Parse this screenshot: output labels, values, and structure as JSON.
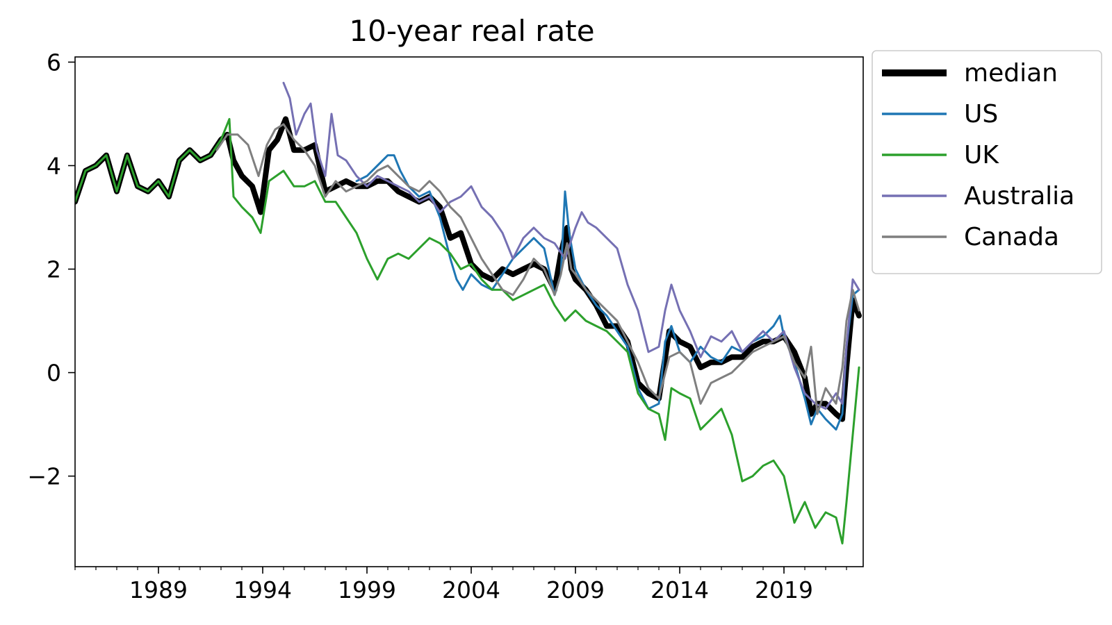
{
  "chart_data": {
    "type": "line",
    "title": "10-year real rate",
    "xlabel": "",
    "ylabel": "",
    "xlim": [
      1985.0,
      2022.8
    ],
    "ylim": [
      -3.75,
      6.1
    ],
    "x_ticks": [
      1989,
      1994,
      1999,
      2004,
      2009,
      2014,
      2019
    ],
    "x_tick_labels": [
      "1989",
      "1994",
      "1999",
      "2004",
      "2009",
      "2014",
      "2019"
    ],
    "y_ticks": [
      -2,
      0,
      2,
      4,
      6
    ],
    "y_tick_labels": [
      "−2",
      "0",
      "2",
      "4",
      "6"
    ],
    "grid": false,
    "legend_position": "outside right, top",
    "series": [
      {
        "name": "median",
        "color": "#000000",
        "x": [
          1985.0,
          1985.5,
          1986.0,
          1986.5,
          1987.0,
          1987.5,
          1988.0,
          1988.5,
          1989.0,
          1989.5,
          1990.0,
          1990.5,
          1991.0,
          1991.5,
          1992.0,
          1992.3,
          1992.6,
          1993.0,
          1993.5,
          1993.9,
          1994.3,
          1994.7,
          1995.1,
          1995.5,
          1996.0,
          1996.5,
          1997.0,
          1997.5,
          1998.0,
          1998.5,
          1999.0,
          1999.5,
          2000.0,
          2000.5,
          2001.0,
          2001.5,
          2002.0,
          2002.5,
          2003.0,
          2003.5,
          2004.0,
          2004.5,
          2005.0,
          2005.5,
          2006.0,
          2006.5,
          2007.0,
          2007.5,
          2008.0,
          2008.3,
          2008.6,
          2008.8,
          2009.0,
          2009.5,
          2010.0,
          2010.5,
          2011.0,
          2011.5,
          2012.0,
          2012.5,
          2013.0,
          2013.5,
          2014.0,
          2014.5,
          2015.0,
          2015.5,
          2016.0,
          2016.5,
          2017.0,
          2017.5,
          2018.0,
          2018.5,
          2019.0,
          2019.5,
          2020.0,
          2020.3,
          2020.6,
          2021.0,
          2021.5,
          2021.8,
          2022.0,
          2022.3,
          2022.6
        ],
        "values": [
          3.3,
          3.9,
          4.0,
          4.2,
          3.5,
          4.2,
          3.6,
          3.5,
          3.7,
          3.4,
          4.1,
          4.3,
          4.1,
          4.2,
          4.5,
          4.6,
          4.1,
          3.8,
          3.6,
          3.1,
          4.3,
          4.5,
          4.9,
          4.3,
          4.3,
          4.4,
          3.5,
          3.6,
          3.7,
          3.6,
          3.6,
          3.7,
          3.7,
          3.5,
          3.4,
          3.3,
          3.4,
          3.2,
          2.6,
          2.7,
          2.1,
          1.9,
          1.8,
          2.0,
          1.9,
          2.0,
          2.1,
          2.0,
          1.6,
          2.3,
          2.8,
          2.0,
          1.8,
          1.6,
          1.3,
          0.9,
          0.9,
          0.6,
          -0.2,
          -0.4,
          -0.5,
          0.8,
          0.6,
          0.5,
          0.1,
          0.2,
          0.2,
          0.3,
          0.3,
          0.5,
          0.6,
          0.6,
          0.7,
          0.4,
          -0.1,
          -0.8,
          -0.6,
          -0.6,
          -0.8,
          -0.9,
          0.1,
          1.4,
          1.1
        ]
      },
      {
        "name": "US",
        "color": "#1f77b4",
        "x": [
          1998.5,
          1999.0,
          1999.5,
          2000.0,
          2000.3,
          2000.6,
          2001.0,
          2001.5,
          2002.0,
          2002.5,
          2003.0,
          2003.3,
          2003.6,
          2004.0,
          2004.5,
          2005.0,
          2005.5,
          2006.0,
          2006.5,
          2007.0,
          2007.5,
          2008.0,
          2008.3,
          2008.5,
          2008.7,
          2009.0,
          2009.5,
          2010.0,
          2010.5,
          2011.0,
          2011.5,
          2012.0,
          2012.5,
          2013.0,
          2013.3,
          2013.6,
          2014.0,
          2014.5,
          2015.0,
          2015.5,
          2016.0,
          2016.5,
          2017.0,
          2017.5,
          2018.0,
          2018.5,
          2018.8,
          2019.0,
          2019.5,
          2020.0,
          2020.3,
          2020.6,
          2021.0,
          2021.5,
          2021.8,
          2022.0,
          2022.3,
          2022.6
        ],
        "values": [
          3.7,
          3.8,
          4.0,
          4.2,
          4.2,
          3.9,
          3.6,
          3.4,
          3.5,
          3.0,
          2.2,
          1.8,
          1.6,
          1.9,
          1.7,
          1.6,
          1.9,
          2.2,
          2.4,
          2.6,
          2.4,
          1.5,
          1.9,
          3.5,
          2.7,
          2.0,
          1.6,
          1.3,
          1.1,
          0.8,
          0.5,
          -0.3,
          -0.7,
          -0.6,
          0.6,
          0.9,
          0.4,
          0.2,
          0.5,
          0.3,
          0.2,
          0.5,
          0.4,
          0.6,
          0.7,
          0.9,
          1.1,
          0.7,
          0.2,
          -0.5,
          -1.0,
          -0.7,
          -0.9,
          -1.1,
          -0.8,
          0.5,
          1.5,
          1.6
        ]
      },
      {
        "name": "UK",
        "color": "#2ca02c",
        "x": [
          1985.0,
          1985.5,
          1986.0,
          1986.5,
          1987.0,
          1987.5,
          1988.0,
          1988.5,
          1989.0,
          1989.5,
          1990.0,
          1990.5,
          1991.0,
          1991.5,
          1992.0,
          1992.4,
          1992.6,
          1993.0,
          1993.5,
          1993.9,
          1994.3,
          1995.0,
          1995.5,
          1996.0,
          1996.5,
          1997.0,
          1997.5,
          1998.0,
          1998.5,
          1999.0,
          1999.5,
          2000.0,
          2000.5,
          2001.0,
          2001.5,
          2002.0,
          2002.5,
          2003.0,
          2003.5,
          2004.0,
          2004.5,
          2005.0,
          2005.5,
          2006.0,
          2006.5,
          2007.0,
          2007.5,
          2008.0,
          2008.5,
          2009.0,
          2009.5,
          2010.0,
          2010.5,
          2011.0,
          2011.5,
          2012.0,
          2012.5,
          2013.0,
          2013.3,
          2013.6,
          2014.0,
          2014.5,
          2015.0,
          2015.5,
          2016.0,
          2016.5,
          2017.0,
          2017.5,
          2018.0,
          2018.5,
          2019.0,
          2019.5,
          2020.0,
          2020.5,
          2021.0,
          2021.5,
          2021.8,
          2022.0,
          2022.3,
          2022.6
        ],
        "values": [
          3.3,
          3.9,
          4.0,
          4.2,
          3.5,
          4.2,
          3.6,
          3.5,
          3.7,
          3.4,
          4.1,
          4.3,
          4.1,
          4.2,
          4.5,
          4.9,
          3.4,
          3.2,
          3.0,
          2.7,
          3.7,
          3.9,
          3.6,
          3.6,
          3.7,
          3.3,
          3.3,
          3.0,
          2.7,
          2.2,
          1.8,
          2.2,
          2.3,
          2.2,
          2.4,
          2.6,
          2.5,
          2.3,
          2.0,
          2.1,
          1.8,
          1.6,
          1.6,
          1.4,
          1.5,
          1.6,
          1.7,
          1.3,
          1.0,
          1.2,
          1.0,
          0.9,
          0.8,
          0.6,
          0.4,
          -0.4,
          -0.7,
          -0.8,
          -1.3,
          -0.3,
          -0.4,
          -0.5,
          -1.1,
          -0.9,
          -0.7,
          -1.2,
          -2.1,
          -2.0,
          -1.8,
          -1.7,
          -2.0,
          -2.9,
          -2.5,
          -3.0,
          -2.7,
          -2.8,
          -3.3,
          -2.5,
          -1.2,
          0.1
        ]
      },
      {
        "name": "Australia",
        "color": "#7570b3",
        "x": [
          1995.0,
          1995.3,
          1995.6,
          1996.0,
          1996.3,
          1996.6,
          1997.0,
          1997.3,
          1997.6,
          1998.0,
          1998.5,
          1999.0,
          1999.5,
          2000.0,
          2000.5,
          2001.0,
          2001.5,
          2002.0,
          2002.5,
          2003.0,
          2003.5,
          2004.0,
          2004.5,
          2005.0,
          2005.5,
          2006.0,
          2006.5,
          2007.0,
          2007.5,
          2008.0,
          2008.5,
          2009.0,
          2009.3,
          2009.6,
          2010.0,
          2010.5,
          2011.0,
          2011.5,
          2012.0,
          2012.5,
          2013.0,
          2013.3,
          2013.6,
          2014.0,
          2014.5,
          2015.0,
          2015.5,
          2016.0,
          2016.5,
          2017.0,
          2017.5,
          2018.0,
          2018.5,
          2019.0,
          2019.5,
          2020.0,
          2020.5,
          2021.0,
          2021.5,
          2021.8,
          2022.0,
          2022.3,
          2022.6
        ],
        "values": [
          5.6,
          5.3,
          4.6,
          5.0,
          5.2,
          4.3,
          3.8,
          5.0,
          4.2,
          4.1,
          3.8,
          3.6,
          3.8,
          3.7,
          3.6,
          3.5,
          3.3,
          3.4,
          3.1,
          3.3,
          3.4,
          3.6,
          3.2,
          3.0,
          2.7,
          2.2,
          2.6,
          2.8,
          2.6,
          2.5,
          2.2,
          2.8,
          3.1,
          2.9,
          2.8,
          2.6,
          2.4,
          1.7,
          1.2,
          0.4,
          0.5,
          1.2,
          1.7,
          1.2,
          0.8,
          0.3,
          0.7,
          0.6,
          0.8,
          0.4,
          0.6,
          0.8,
          0.6,
          0.8,
          0.1,
          -0.4,
          -0.6,
          -0.7,
          -0.4,
          -0.6,
          0.5,
          1.8,
          1.6
        ]
      },
      {
        "name": "Canada",
        "color": "#7f7f7f",
        "x": [
          1991.8,
          1992.3,
          1992.8,
          1993.3,
          1993.8,
          1994.2,
          1994.6,
          1995.0,
          1995.5,
          1996.0,
          1996.5,
          1997.0,
          1997.5,
          1998.0,
          1998.5,
          1999.0,
          1999.5,
          2000.0,
          2000.5,
          2001.0,
          2001.5,
          2002.0,
          2002.5,
          2003.0,
          2003.5,
          2004.0,
          2004.5,
          2005.0,
          2005.5,
          2006.0,
          2006.5,
          2007.0,
          2007.5,
          2008.0,
          2008.3,
          2008.6,
          2008.8,
          2009.0,
          2009.5,
          2010.0,
          2010.5,
          2011.0,
          2011.5,
          2012.0,
          2012.5,
          2013.0,
          2013.5,
          2014.0,
          2014.5,
          2015.0,
          2015.5,
          2016.0,
          2016.5,
          2017.0,
          2017.5,
          2018.0,
          2018.5,
          2019.0,
          2019.5,
          2020.0,
          2020.3,
          2020.6,
          2021.0,
          2021.5,
          2021.8,
          2022.0,
          2022.3,
          2022.6
        ],
        "values": [
          4.3,
          4.6,
          4.6,
          4.4,
          3.8,
          4.4,
          4.7,
          4.8,
          4.5,
          4.3,
          4.0,
          3.4,
          3.7,
          3.5,
          3.6,
          3.7,
          3.9,
          4.0,
          3.8,
          3.6,
          3.5,
          3.7,
          3.5,
          3.2,
          3.0,
          2.6,
          2.2,
          1.9,
          1.6,
          1.5,
          1.8,
          2.2,
          2.0,
          1.5,
          1.9,
          2.5,
          2.0,
          1.9,
          1.6,
          1.4,
          1.2,
          1.0,
          0.6,
          0.2,
          -0.3,
          -0.5,
          0.3,
          0.4,
          0.2,
          -0.6,
          -0.2,
          -0.1,
          0.0,
          0.2,
          0.4,
          0.5,
          0.6,
          0.7,
          0.2,
          -0.1,
          0.5,
          -0.8,
          -0.3,
          -0.6,
          0.1,
          1.0,
          1.6,
          1.2
        ]
      }
    ]
  }
}
